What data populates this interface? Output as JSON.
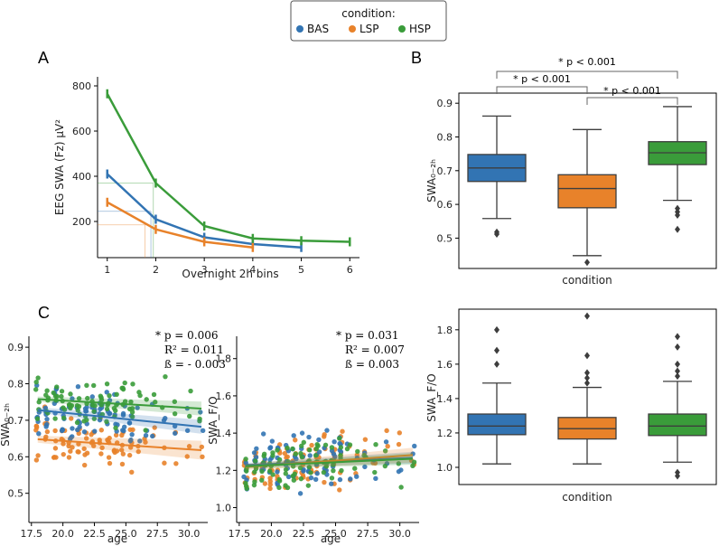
{
  "legend": {
    "title": "condition:",
    "entries": [
      {
        "name": "BAS",
        "color": "#3274b3"
      },
      {
        "name": "LSP",
        "color": "#e8822a"
      },
      {
        "name": "HSP",
        "color": "#3a9c3a"
      }
    ]
  },
  "panels": {
    "A": "A",
    "B": "B",
    "C": "C"
  },
  "chart_data": [
    {
      "id": "A",
      "type": "line",
      "ylabel": "EEG SWA (Fz) µV²",
      "xlabel": "Overnight 2h bins",
      "xticks": [
        1,
        2,
        3,
        4,
        5,
        6
      ],
      "yticks": [
        200,
        400,
        600,
        800
      ],
      "xlim": [
        0.8,
        6.2
      ],
      "ylim": [
        40,
        840
      ],
      "series": [
        {
          "name": "BAS",
          "x": [
            1,
            2,
            3,
            4,
            5
          ],
          "values": [
            410,
            210,
            130,
            100,
            85
          ]
        },
        {
          "name": "LSP",
          "x": [
            1,
            2,
            3,
            4
          ],
          "values": [
            285,
            165,
            110,
            85
          ]
        },
        {
          "name": "HSP",
          "x": [
            1,
            2,
            3,
            4,
            5,
            6
          ],
          "values": [
            765,
            370,
            180,
            125,
            115,
            110
          ]
        }
      ],
      "guides": [
        {
          "name": "BAS",
          "x": 1.9,
          "y": 245
        },
        {
          "name": "LSP",
          "x": 1.78,
          "y": 185
        },
        {
          "name": "HSP",
          "x": 1.95,
          "y": 370
        }
      ]
    },
    {
      "id": "B-top",
      "type": "box",
      "ylabel": "SWA₀₋₂ₕ",
      "xlabel": "condition",
      "yticks": [
        0.5,
        0.6,
        0.7,
        0.8,
        0.9
      ],
      "ylim": [
        0.41,
        0.93
      ],
      "boxes": [
        {
          "name": "BAS",
          "whislo": 0.558,
          "q1": 0.668,
          "med": 0.708,
          "q3": 0.748,
          "whishi": 0.862,
          "fliers": [
            0.518,
            0.512
          ]
        },
        {
          "name": "LSP",
          "whislo": 0.448,
          "q1": 0.59,
          "med": 0.647,
          "q3": 0.688,
          "whishi": 0.822,
          "fliers": [
            0.428
          ]
        },
        {
          "name": "HSP",
          "whislo": 0.612,
          "q1": 0.718,
          "med": 0.753,
          "q3": 0.786,
          "whishi": 0.89,
          "fliers": [
            0.588,
            0.578,
            0.568,
            0.526
          ]
        }
      ],
      "comparisons": [
        {
          "pair": [
            "BAS",
            "HSP"
          ],
          "label": "* p < 0.001"
        },
        {
          "pair": [
            "BAS",
            "LSP"
          ],
          "label": "* p < 0.001"
        },
        {
          "pair": [
            "LSP",
            "HSP"
          ],
          "label": "* p < 0.001"
        }
      ]
    },
    {
      "id": "B-bottom",
      "type": "box",
      "ylabel": "SWA_F/O",
      "xlabel": "condition",
      "yticks": [
        1.0,
        1.2,
        1.4,
        1.6,
        1.8
      ],
      "ylim": [
        0.9,
        1.92
      ],
      "boxes": [
        {
          "name": "BAS",
          "whislo": 1.02,
          "q1": 1.19,
          "med": 1.24,
          "q3": 1.31,
          "whishi": 1.49,
          "fliers": [
            1.6,
            1.68,
            1.8
          ]
        },
        {
          "name": "LSP",
          "whislo": 1.02,
          "q1": 1.165,
          "med": 1.225,
          "q3": 1.29,
          "whishi": 1.465,
          "fliers": [
            1.49,
            1.52,
            1.55,
            1.65,
            1.88
          ]
        },
        {
          "name": "HSP",
          "whislo": 1.03,
          "q1": 1.185,
          "med": 1.24,
          "q3": 1.31,
          "whishi": 1.5,
          "fliers": [
            1.53,
            1.56,
            1.6,
            1.7,
            1.76,
            0.97,
            0.95
          ]
        }
      ]
    },
    {
      "id": "C-left",
      "type": "scatter",
      "xlabel": "age",
      "ylabel": "SWA₀₋₂ₕ",
      "xticks": [
        17.5,
        20.0,
        22.5,
        25.0,
        27.5,
        30.0
      ],
      "xtick_labels": [
        "17.5",
        "20.0",
        "22.5",
        "25.0",
        "27.5",
        "30.0"
      ],
      "yticks": [
        0.5,
        0.6,
        0.7,
        0.8,
        0.9
      ],
      "xlim": [
        17.3,
        31.5
      ],
      "ylim": [
        0.42,
        0.93
      ],
      "stats": {
        "p": "* p  = 0.006",
        "r2": "R² = 0.011",
        "beta": "ß  = - 0.003"
      },
      "fits": [
        {
          "name": "BAS",
          "x": [
            18,
            31
          ],
          "y": [
            0.728,
            0.682
          ],
          "band": 0.012
        },
        {
          "name": "LSP",
          "x": [
            18,
            31
          ],
          "y": [
            0.648,
            0.618
          ],
          "band": 0.016
        },
        {
          "name": "HSP",
          "x": [
            18,
            31
          ],
          "y": [
            0.758,
            0.732
          ],
          "band": 0.012
        }
      ]
    },
    {
      "id": "C-right",
      "type": "scatter",
      "xlabel": "age",
      "ylabel": "SWA_F/O",
      "xticks": [
        17.5,
        20.0,
        22.5,
        25.0,
        27.5,
        30.0
      ],
      "xtick_labels": [
        "17.5",
        "20.0",
        "22.5",
        "25.0",
        "27.5",
        "30.0"
      ],
      "yticks": [
        1.0,
        1.2,
        1.4,
        1.6,
        1.8
      ],
      "xlim": [
        17.3,
        31.5
      ],
      "ylim": [
        0.92,
        1.92
      ],
      "stats": {
        "p": "* p = 0.031",
        "r2": "R² = 0.007",
        "beta": "ß = 0.003"
      },
      "fits": [
        {
          "name": "BAS",
          "x": [
            18,
            31
          ],
          "y": [
            1.228,
            1.268
          ],
          "band": 0.02
        },
        {
          "name": "LSP",
          "x": [
            18,
            31
          ],
          "y": [
            1.218,
            1.282
          ],
          "band": 0.025
        },
        {
          "name": "HSP",
          "x": [
            18,
            31
          ],
          "y": [
            1.222,
            1.262
          ],
          "band": 0.02
        }
      ]
    }
  ]
}
